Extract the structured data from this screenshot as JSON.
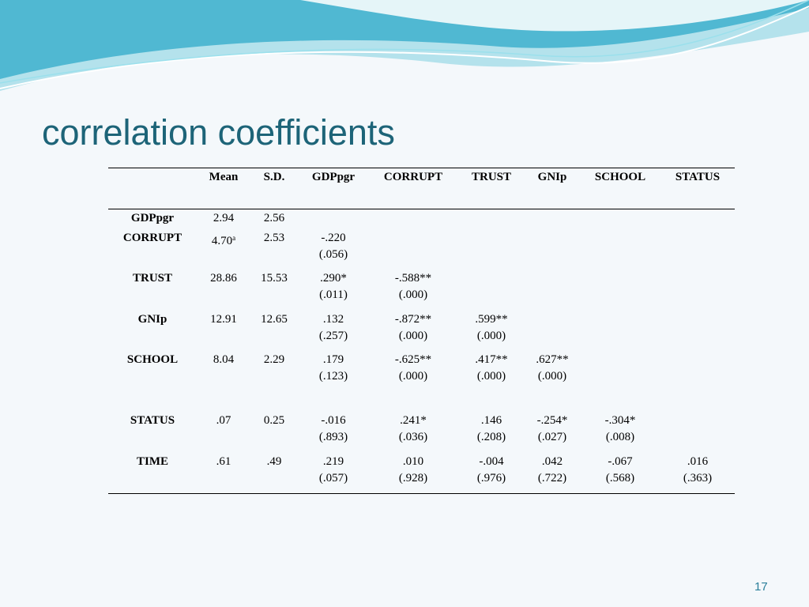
{
  "title": "correlation coefficients",
  "table": {
    "header": [
      "Mean",
      "S.D.",
      "GDPpgr",
      "CORRUPT",
      "TRUST",
      "GNIp",
      "SCHOOL",
      "STATUS"
    ],
    "rows": [
      {
        "label": "GDPpgr",
        "mean": "2.94",
        "sd": "2.56",
        "cells": []
      },
      {
        "label": "CORRUPT",
        "mean": "4.70",
        "mean_sup": "a",
        "sd": "2.53",
        "cells": [
          {
            "r": "-.220",
            "p": "(.056)"
          }
        ]
      },
      {
        "label": "TRUST",
        "mean": "28.86",
        "sd": "15.53",
        "cells": [
          {
            "r": ".290*",
            "p": "(.011)"
          },
          {
            "r": "-.588**",
            "p": "(.000)"
          }
        ]
      },
      {
        "label": "GNIp",
        "mean": "12.91",
        "sd": "12.65",
        "cells": [
          {
            "r": ".132",
            "p": "(.257)"
          },
          {
            "r": "-.872**",
            "p": "(.000)"
          },
          {
            "r": ".599**",
            "p": "(.000)"
          }
        ]
      },
      {
        "label": "SCHOOL",
        "mean": "8.04",
        "sd": "2.29",
        "cells": [
          {
            "r": ".179",
            "p": "(.123)"
          },
          {
            "r": "-.625**",
            "p": "(.000)"
          },
          {
            "r": ".417**",
            "p": "(.000)"
          },
          {
            "r": ".627**",
            "p": "(.000)"
          }
        ]
      },
      {
        "label": "STATUS",
        "mean": ".07",
        "sd": "0.25",
        "cells": [
          {
            "r": "-.016",
            "p": "(.893)"
          },
          {
            "r": ".241*",
            "p": "(.036)"
          },
          {
            "r": ".146",
            "p": "(.208)"
          },
          {
            "r": "-.254*",
            "p": "(.027)"
          },
          {
            "r": "-.304*",
            "p": "(.008)"
          }
        ]
      },
      {
        "label": "TIME",
        "mean": ".61",
        "sd": ".49",
        "cells": [
          {
            "r": ".219",
            "p": "(.057)"
          },
          {
            "r": ".010",
            "p": "(.928)"
          },
          {
            "r": "-.004",
            "p": "(.976)"
          },
          {
            "r": ".042",
            "p": "(.722)"
          },
          {
            "r": "-.067",
            "p": "(.568)"
          },
          {
            "r": ".016",
            "p": "(.363)"
          }
        ]
      }
    ]
  },
  "page_number": "17"
}
